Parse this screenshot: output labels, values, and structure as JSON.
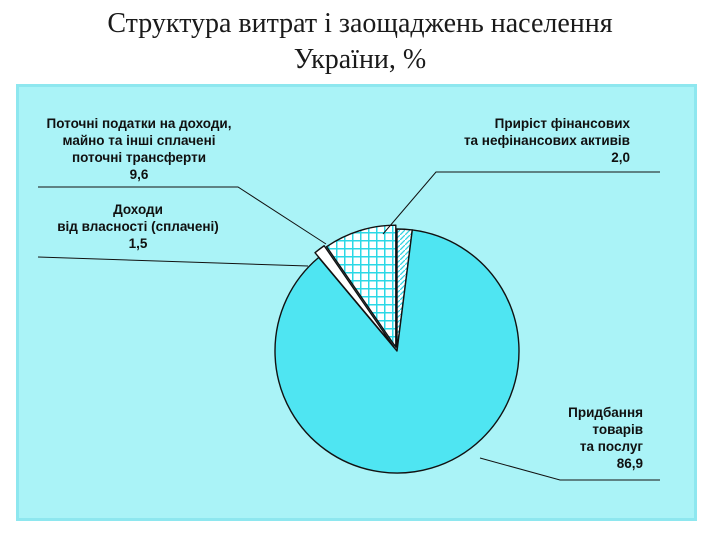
{
  "title": {
    "line1": "Структура витрат і заощаджень населення",
    "line2": "України, %"
  },
  "colors": {
    "panel_bg": "#aaf3f7",
    "panel_border": "#8ee7ef",
    "slice_fill": "#4fe5f2",
    "outline": "#111111"
  },
  "chart_data": {
    "type": "pie",
    "title": "Структура витрат і заощаджень населення України, %",
    "slices": [
      {
        "lines": [
          "Приріст фінансових",
          "та нефінансових активів"
        ],
        "value_label": "2,0",
        "value": 2.0,
        "pattern": "hatch"
      },
      {
        "lines": [
          "Придбання",
          "товарів",
          "та послуг"
        ],
        "value_label": "86,9",
        "value": 86.9,
        "pattern": "solid"
      },
      {
        "lines": [
          "Доходи",
          "від власності (сплачені)"
        ],
        "value_label": "1,5",
        "value": 1.5,
        "pattern": "white"
      },
      {
        "lines": [
          "Поточні податки на доходи,",
          "майно та інші сплачені",
          "поточні трансферти"
        ],
        "value_label": "9,6",
        "value": 9.6,
        "pattern": "grid"
      }
    ],
    "start_angle_deg": 0,
    "legend": "none (callout labels)"
  }
}
